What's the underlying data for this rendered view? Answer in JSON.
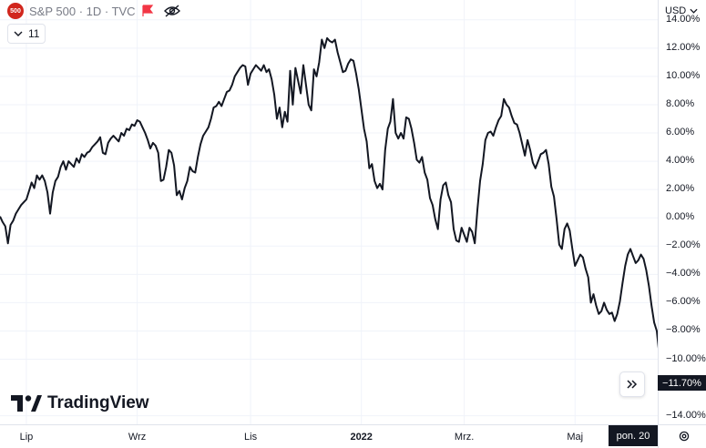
{
  "legend": {
    "symbol_badge": "500",
    "title": "S&P 500 · 1D · TVC",
    "flag_icon": "flag-icon",
    "visibility_icon": "eye-crossed-icon"
  },
  "indicators": {
    "label": "11",
    "icon": "chevron-down-icon"
  },
  "currency": {
    "label": "USD",
    "icon": "chevron-down-icon"
  },
  "colors": {
    "line": "#131722",
    "grid": "#f0f3fa",
    "badge_red": "#d1261d",
    "label_dark": "#131722"
  },
  "brand": {
    "name": "TradingView"
  },
  "last_value_label": "−11.70%",
  "crosshair_date": "pon. 20",
  "scroll_button_icon": "double-chevron-right-icon",
  "settings_icon": "gear-icon",
  "chart_data": {
    "type": "line",
    "series_type": "percent-change",
    "y_ticks": [
      "14.00%",
      "12.00%",
      "10.00%",
      "8.00%",
      "6.00%",
      "4.00%",
      "2.00%",
      "0.00%",
      "−2.00%",
      "−4.00%",
      "−6.00%",
      "−8.00%",
      "−10.00%",
      "−14.00%"
    ],
    "y_tick_values": [
      14,
      12,
      10,
      8,
      6,
      4,
      2,
      0,
      -2,
      -4,
      -6,
      -8,
      -10,
      -14
    ],
    "ylim": [
      -14.6,
      15.4
    ],
    "x_ticks": [
      {
        "label": "Lip",
        "bold": false,
        "index": 10
      },
      {
        "label": "Wrz",
        "bold": false,
        "index": 52
      },
      {
        "label": "Lis",
        "bold": false,
        "index": 95
      },
      {
        "label": "2022",
        "bold": true,
        "index": 137
      },
      {
        "label": "Mrz.",
        "bold": false,
        "index": 176
      },
      {
        "label": "Maj",
        "bold": false,
        "index": 218
      }
    ],
    "x_count": 250,
    "last_value": -11.7,
    "values": [
      0.1,
      -0.3,
      -0.6,
      -1.8,
      -0.5,
      -0.2,
      0.3,
      0.6,
      0.9,
      1.1,
      1.3,
      1.9,
      2.5,
      2.1,
      3.0,
      2.7,
      3.0,
      2.6,
      1.8,
      0.3,
      1.8,
      2.6,
      2.9,
      3.6,
      4.0,
      3.4,
      4.0,
      3.8,
      3.6,
      4.2,
      3.9,
      4.5,
      4.3,
      4.6,
      4.7,
      5.0,
      5.2,
      5.4,
      5.7,
      4.6,
      4.5,
      5.3,
      5.6,
      5.8,
      5.6,
      5.4,
      6.0,
      5.8,
      6.3,
      6.2,
      6.6,
      6.5,
      6.9,
      6.8,
      6.4,
      6.0,
      5.5,
      4.9,
      5.3,
      5.1,
      4.6,
      2.6,
      2.7,
      3.6,
      4.8,
      4.6,
      3.7,
      1.6,
      1.9,
      1.3,
      2.1,
      2.6,
      3.6,
      3.3,
      3.2,
      4.3,
      5.2,
      5.8,
      6.1,
      6.4,
      7.0,
      7.8,
      7.9,
      8.2,
      7.9,
      8.4,
      8.9,
      9.0,
      9.4,
      10.0,
      10.3,
      10.6,
      10.8,
      10.7,
      9.4,
      10.2,
      10.5,
      10.8,
      10.6,
      10.4,
      10.8,
      10.3,
      10.5,
      9.8,
      8.7,
      7.0,
      7.8,
      6.4,
      7.5,
      6.8,
      10.4,
      8.0,
      10.6,
      9.7,
      8.8,
      10.8,
      9.4,
      8.0,
      7.6,
      10.5,
      10.0,
      11.0,
      12.6,
      12.0,
      12.7,
      12.5,
      12.4,
      12.6,
      11.7,
      11.0,
      10.3,
      10.4,
      10.9,
      11.2,
      11.1,
      10.2,
      9.1,
      7.7,
      6.3,
      5.4,
      3.5,
      3.8,
      2.6,
      2.1,
      2.4,
      2.0,
      4.8,
      6.3,
      6.8,
      8.4,
      6.0,
      5.6,
      6.0,
      5.6,
      7.1,
      7.0,
      6.3,
      5.3,
      4.1,
      3.9,
      4.3,
      3.2,
      2.7,
      1.4,
      0.9,
      -0.1,
      -0.8,
      1.3,
      2.3,
      2.5,
      1.6,
      1.1,
      -0.8,
      -1.6,
      -1.7,
      -0.7,
      -1.2,
      -1.7,
      -0.7,
      -1.0,
      -1.8,
      0.6,
      2.6,
      3.8,
      5.5,
      6.0,
      6.1,
      5.8,
      6.4,
      6.9,
      7.2,
      8.4,
      8.0,
      7.8,
      7.2,
      6.7,
      6.6,
      6.0,
      5.2,
      4.4,
      5.5,
      4.8,
      3.9,
      3.5,
      4.0,
      4.5,
      4.6,
      4.8,
      3.8,
      2.2,
      1.5,
      -0.1,
      -1.9,
      -2.2,
      -0.8,
      -0.4,
      -0.9,
      -2.2,
      -3.4,
      -3.0,
      -2.6,
      -2.8,
      -3.6,
      -4.2,
      -6.0,
      -5.4,
      -6.2,
      -6.8,
      -6.6,
      -6.0,
      -6.5,
      -6.8,
      -6.7,
      -7.3,
      -6.8,
      -5.9,
      -4.6,
      -3.4,
      -2.6,
      -2.2,
      -2.7,
      -3.2,
      -3.0,
      -2.6,
      -2.9,
      -3.7,
      -4.8,
      -6.2,
      -7.4,
      -8.0,
      -9.8,
      -11.7
    ]
  }
}
